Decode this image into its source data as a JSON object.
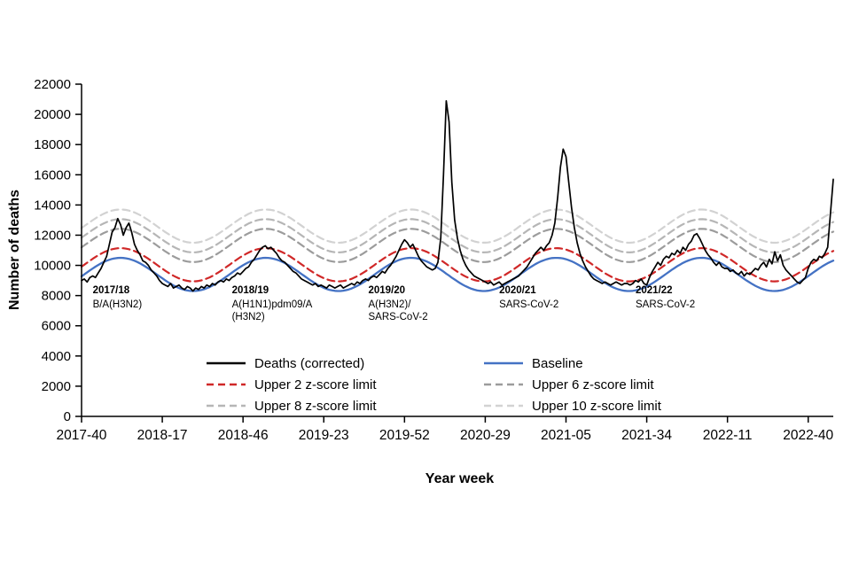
{
  "chart_data": {
    "type": "line",
    "title": "",
    "xlabel": "Year week",
    "ylabel": "Number of deaths",
    "ylim": [
      0,
      22000
    ],
    "y_tick_step": 2000,
    "x_tick_labels": [
      "2017-40",
      "2018-17",
      "2018-46",
      "2019-23",
      "2019-52",
      "2020-29",
      "2021-05",
      "2021-34",
      "2022-11",
      "2022-40"
    ],
    "x_tick_indices": [
      0,
      29,
      58,
      87,
      116,
      145,
      174,
      203,
      232,
      261
    ],
    "x_index_count": 271,
    "deaths_series": {
      "name": "Deaths (corrected)",
      "color": "#000000",
      "values": [
        9000,
        9100,
        8900,
        9200,
        9300,
        9200,
        9500,
        9800,
        10200,
        10600,
        11400,
        12200,
        12500,
        13100,
        12700,
        12000,
        12500,
        12800,
        12200,
        11400,
        11000,
        10700,
        10300,
        10200,
        10000,
        9700,
        9500,
        9300,
        9000,
        8800,
        8700,
        8600,
        8800,
        8500,
        8600,
        8700,
        8500,
        8400,
        8600,
        8500,
        8300,
        8500,
        8400,
        8600,
        8500,
        8700,
        8600,
        8800,
        8700,
        8900,
        9000,
        8900,
        9100,
        9000,
        9200,
        9300,
        9500,
        9400,
        9600,
        9800,
        9900,
        10200,
        10400,
        10700,
        11000,
        11200,
        11300,
        11100,
        11200,
        11000,
        10800,
        10500,
        10300,
        10200,
        10000,
        9800,
        9600,
        9500,
        9300,
        9100,
        9000,
        8900,
        8800,
        8700,
        8800,
        8600,
        8700,
        8600,
        8500,
        8700,
        8600,
        8500,
        8600,
        8700,
        8500,
        8600,
        8700,
        8800,
        8700,
        8900,
        8800,
        9000,
        9100,
        9000,
        9200,
        9300,
        9200,
        9400,
        9600,
        9500,
        9800,
        10000,
        10300,
        10600,
        11000,
        11400,
        11700,
        11500,
        11200,
        11400,
        11000,
        10600,
        10300,
        10100,
        9900,
        9800,
        9700,
        9800,
        10200,
        11800,
        16000,
        20900,
        19500,
        15500,
        13000,
        11800,
        11000,
        10400,
        10000,
        9700,
        9500,
        9300,
        9200,
        9100,
        9000,
        8900,
        8800,
        8900,
        8700,
        8800,
        8900,
        8700,
        8800,
        8900,
        9000,
        9100,
        9200,
        9300,
        9500,
        9700,
        9900,
        10200,
        10500,
        10800,
        11000,
        11200,
        11000,
        11300,
        11500,
        12000,
        12800,
        14500,
        16500,
        17700,
        17200,
        15500,
        13800,
        12500,
        11500,
        10800,
        10300,
        9900,
        9600,
        9300,
        9100,
        9000,
        8900,
        8800,
        8900,
        8800,
        8700,
        8800,
        8900,
        8800,
        8700,
        8800,
        8800,
        8700,
        8800,
        9000,
        8900,
        9100,
        8800,
        8700,
        9200,
        9600,
        9900,
        10200,
        10000,
        10400,
        10600,
        10500,
        10800,
        10700,
        11000,
        10800,
        11200,
        11000,
        11400,
        11600,
        12000,
        12100,
        11800,
        11400,
        11000,
        10700,
        10500,
        10200,
        10000,
        10200,
        9900,
        9800,
        9800,
        9600,
        9700,
        9500,
        9400,
        9600,
        9300,
        9500,
        9400,
        9600,
        9800,
        9700,
        10000,
        10200,
        9900,
        10400,
        10100,
        10900,
        10300,
        10700,
        10000,
        9700,
        9500,
        9300,
        9100,
        8900,
        8800,
        9000,
        9200,
        9800,
        10200,
        10400,
        10300,
        10600,
        10500,
        10800,
        11200,
        13500,
        15700
      ]
    },
    "baseline": {
      "name": "Baseline",
      "color": "#4472c4",
      "mean": 9400,
      "amplitude": 1100,
      "period_weeks": 52.18,
      "peak_index": 14
    },
    "zscore_limits": [
      {
        "name": "Upper 2 z-score limit",
        "offset": 640,
        "color": "#d02828"
      },
      {
        "name": "Upper 6 z-score limit",
        "offset": 1920,
        "color": "#9c9c9c"
      },
      {
        "name": "Upper 8 z-score limit",
        "offset": 2560,
        "color": "#b6b6b6"
      },
      {
        "name": "Upper 10 z-score limit",
        "offset": 3200,
        "color": "#d2d2d2"
      }
    ],
    "annotations": [
      {
        "season": "2017/18",
        "lines": [
          "B/A(H3N2)"
        ],
        "x_index": 4,
        "y_value": 8150
      },
      {
        "season": "2018/19",
        "lines": [
          "A(H1N1)pdm09/A",
          "(H3N2)"
        ],
        "x_index": 54,
        "y_value": 8150
      },
      {
        "season": "2019/20",
        "lines": [
          "A(H3N2)/",
          "SARS-CoV-2"
        ],
        "x_index": 103,
        "y_value": 8150
      },
      {
        "season": "2020/21",
        "lines": [
          "SARS-CoV-2"
        ],
        "x_index": 150,
        "y_value": 8150
      },
      {
        "season": "2021/22",
        "lines": [
          "SARS-CoV-2"
        ],
        "x_index": 199,
        "y_value": 8150
      }
    ],
    "legend": {
      "columns": [
        [
          {
            "label": "Deaths (corrected)",
            "color": "#000000",
            "dash": false
          },
          {
            "label": "Upper 2 z-score limit",
            "color": "#d02828",
            "dash": true
          },
          {
            "label": "Upper 8 z-score limit",
            "color": "#b6b6b6",
            "dash": true
          }
        ],
        [
          {
            "label": "Baseline",
            "color": "#4472c4",
            "dash": false
          },
          {
            "label": "Upper 6 z-score limit",
            "color": "#9c9c9c",
            "dash": true
          },
          {
            "label": "Upper 10 z-score limit",
            "color": "#d2d2d2",
            "dash": true
          }
        ]
      ]
    }
  }
}
